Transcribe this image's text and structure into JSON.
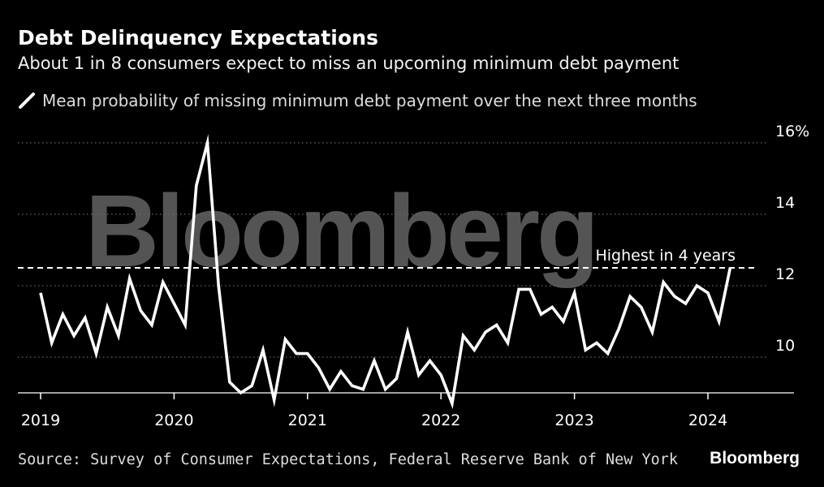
{
  "title": "Debt Delinquency Expectations",
  "subtitle": "About 1 in 8 consumers expect to miss an upcoming minimum debt payment",
  "source": "Source: Survey of Consumer Expectations, Federal Reserve Bank of New York",
  "brand": "Bloomberg",
  "watermark": "Bloomberg",
  "colors": {
    "background": "#000000",
    "line": "#ffffff",
    "grid": "#666666",
    "axis": "#ffffff",
    "text": "#ffffff"
  },
  "chart_data": {
    "type": "line",
    "title": "Debt Delinquency Expectations",
    "subtitle": "About 1 in 8 consumers expect to miss an upcoming minimum debt payment",
    "ylim": [
      8.5,
      16.5
    ],
    "yticks": [
      10,
      12,
      14,
      16
    ],
    "ytick_labels": [
      "10",
      "12",
      "14",
      "16%"
    ],
    "xlim": [
      2019.0,
      2024.85
    ],
    "xticks": [
      2019,
      2020,
      2021,
      2022,
      2023,
      2024
    ],
    "xtick_labels": [
      "2019",
      "2020",
      "2021",
      "2022",
      "2023",
      "2024"
    ],
    "grid": "horizontal dotted",
    "legend_position": "top-left",
    "series": [
      {
        "name": "Mean probability of missing minimum debt payment over the next three months",
        "start": "2019-01",
        "frequency": "monthly",
        "values": [
          11.8,
          10.4,
          11.2,
          10.6,
          11.1,
          10.1,
          11.4,
          10.6,
          12.2,
          11.3,
          10.9,
          12.1,
          11.5,
          10.9,
          14.8,
          16.0,
          12.0,
          9.3,
          9.0,
          9.2,
          10.2,
          8.8,
          10.5,
          10.1,
          10.1,
          9.7,
          9.1,
          9.6,
          9.2,
          9.1,
          9.9,
          9.1,
          9.4,
          10.7,
          9.5,
          9.9,
          9.5,
          8.7,
          10.6,
          10.2,
          10.7,
          10.9,
          10.4,
          11.9,
          11.9,
          11.2,
          11.4,
          11.0,
          11.8,
          10.2,
          10.4,
          10.1,
          10.8,
          11.7,
          11.4,
          10.7,
          12.1,
          11.7,
          11.5,
          12.0,
          11.8,
          11.0,
          12.5
        ]
      }
    ],
    "reference_line": {
      "value": 12.5,
      "label": "Highest in 4 years",
      "style": "dashed"
    }
  }
}
